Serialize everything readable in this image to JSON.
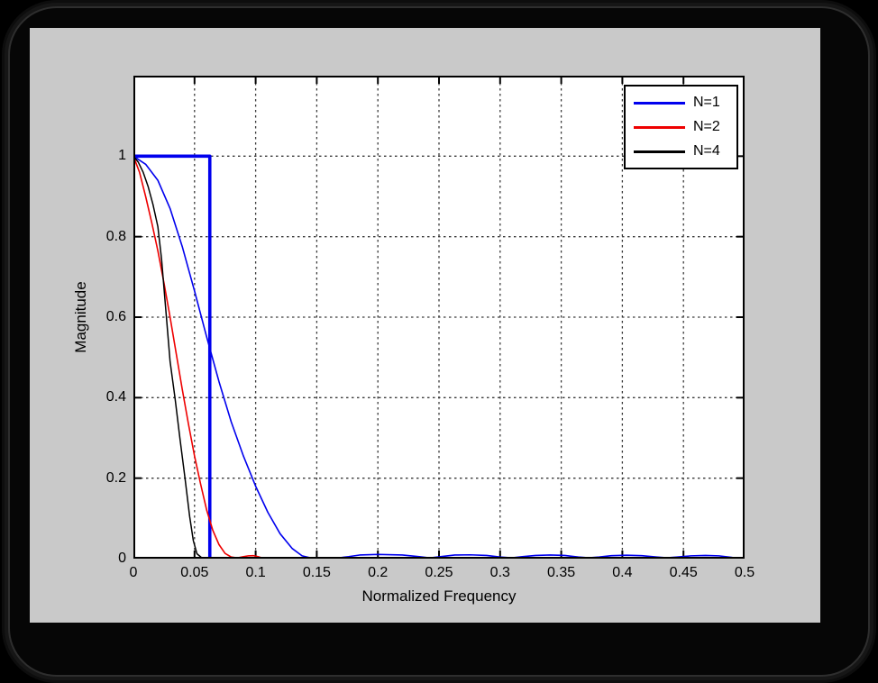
{
  "window": {
    "background": "#000000",
    "frame_outline": "#2e2e2e",
    "panel_bg": "#c9c9c9",
    "plot_bg": "#ffffff"
  },
  "chart_data": {
    "type": "line",
    "title": "",
    "xlabel": "Normalized Frequency",
    "ylabel": "Magnitude",
    "xlim": [
      0,
      0.5
    ],
    "ylim": [
      0,
      1.2
    ],
    "grid": true,
    "grid_style": "dashed",
    "grid_color": "#3a3a3a",
    "axis_color": "#000000",
    "xticks": [
      0,
      0.05,
      0.1,
      0.15,
      0.2,
      0.25,
      0.3,
      0.35,
      0.4,
      0.45,
      0.5
    ],
    "xtick_labels": [
      "0",
      "0.05",
      "0.1",
      "0.15",
      "0.2",
      "0.25",
      "0.3",
      "0.35",
      "0.4",
      "0.45",
      "0.5"
    ],
    "yticks": [
      0,
      0.2,
      0.4,
      0.6,
      0.8,
      1
    ],
    "ytick_labels": [
      "0",
      "0.2",
      "0.4",
      "0.6",
      "0.8",
      "1"
    ],
    "legend": {
      "position": "top-right",
      "entries": [
        {
          "label": "N=1",
          "color": "#0000ee"
        },
        {
          "label": "N=2",
          "color": "#ee0000"
        },
        {
          "label": "N=4",
          "color": "#000000"
        }
      ]
    },
    "series": [
      {
        "name": "ideal-lowpass-rectangle",
        "color": "#0000ee",
        "line_width": 3.6,
        "points": [
          [
            0,
            1
          ],
          [
            0.0625,
            1
          ],
          [
            0.0625,
            0.003
          ]
        ]
      },
      {
        "name": "N=1",
        "color": "#0000ee",
        "line_width": 1.6,
        "points": [
          [
            0,
            1
          ],
          [
            0.01,
            0.98
          ],
          [
            0.02,
            0.94
          ],
          [
            0.03,
            0.87
          ],
          [
            0.04,
            0.775
          ],
          [
            0.05,
            0.665
          ],
          [
            0.06,
            0.55
          ],
          [
            0.07,
            0.44
          ],
          [
            0.08,
            0.34
          ],
          [
            0.09,
            0.255
          ],
          [
            0.1,
            0.18
          ],
          [
            0.11,
            0.115
          ],
          [
            0.12,
            0.062
          ],
          [
            0.13,
            0.025
          ],
          [
            0.138,
            0.007
          ],
          [
            0.145,
            0.002
          ],
          [
            0.168,
            0.002
          ],
          [
            0.176,
            0.005
          ],
          [
            0.185,
            0.009
          ],
          [
            0.2,
            0.0105
          ],
          [
            0.22,
            0.009
          ],
          [
            0.234,
            0.005
          ],
          [
            0.2425,
            0.002
          ],
          [
            0.251,
            0.005
          ],
          [
            0.263,
            0.009
          ],
          [
            0.2755,
            0.0095
          ],
          [
            0.289,
            0.008
          ],
          [
            0.3,
            0.004
          ],
          [
            0.309,
            0.002
          ],
          [
            0.318,
            0.005
          ],
          [
            0.329,
            0.008
          ],
          [
            0.341,
            0.009
          ],
          [
            0.353,
            0.008
          ],
          [
            0.364,
            0.004
          ],
          [
            0.3725,
            0.002
          ],
          [
            0.381,
            0.004
          ],
          [
            0.391,
            0.0075
          ],
          [
            0.4035,
            0.0085
          ],
          [
            0.416,
            0.0075
          ],
          [
            0.428,
            0.004
          ],
          [
            0.4365,
            0.002
          ],
          [
            0.445,
            0.004
          ],
          [
            0.456,
            0.007
          ],
          [
            0.468,
            0.008
          ],
          [
            0.479,
            0.007
          ],
          [
            0.49,
            0.003
          ],
          [
            0.498,
            0.001
          ]
        ]
      },
      {
        "name": "N=2",
        "color": "#ee0000",
        "line_width": 1.6,
        "points": [
          [
            0,
            1
          ],
          [
            0.005,
            0.96
          ],
          [
            0.01,
            0.9
          ],
          [
            0.015,
            0.835
          ],
          [
            0.02,
            0.765
          ],
          [
            0.025,
            0.685
          ],
          [
            0.03,
            0.6
          ],
          [
            0.035,
            0.51
          ],
          [
            0.04,
            0.42
          ],
          [
            0.045,
            0.335
          ],
          [
            0.05,
            0.255
          ],
          [
            0.055,
            0.185
          ],
          [
            0.06,
            0.12
          ],
          [
            0.065,
            0.07
          ],
          [
            0.07,
            0.035
          ],
          [
            0.075,
            0.013
          ],
          [
            0.08,
            0.004
          ],
          [
            0.085,
            0.002
          ],
          [
            0.09,
            0.005
          ],
          [
            0.094,
            0.007
          ],
          [
            0.098,
            0.0075
          ],
          [
            0.102,
            0.005
          ],
          [
            0.106,
            0.001
          ]
        ]
      },
      {
        "name": "N=4",
        "color": "#000000",
        "line_width": 1.5,
        "points": [
          [
            0,
            1
          ],
          [
            0.004,
            0.985
          ],
          [
            0.008,
            0.96
          ],
          [
            0.012,
            0.925
          ],
          [
            0.016,
            0.88
          ],
          [
            0.02,
            0.825
          ],
          [
            0.023,
            0.745
          ],
          [
            0.027,
            0.6
          ],
          [
            0.03,
            0.49
          ],
          [
            0.034,
            0.4
          ],
          [
            0.038,
            0.3
          ],
          [
            0.042,
            0.205
          ],
          [
            0.046,
            0.105
          ],
          [
            0.049,
            0.045
          ],
          [
            0.052,
            0.012
          ],
          [
            0.056,
            0.002
          ]
        ]
      }
    ]
  }
}
